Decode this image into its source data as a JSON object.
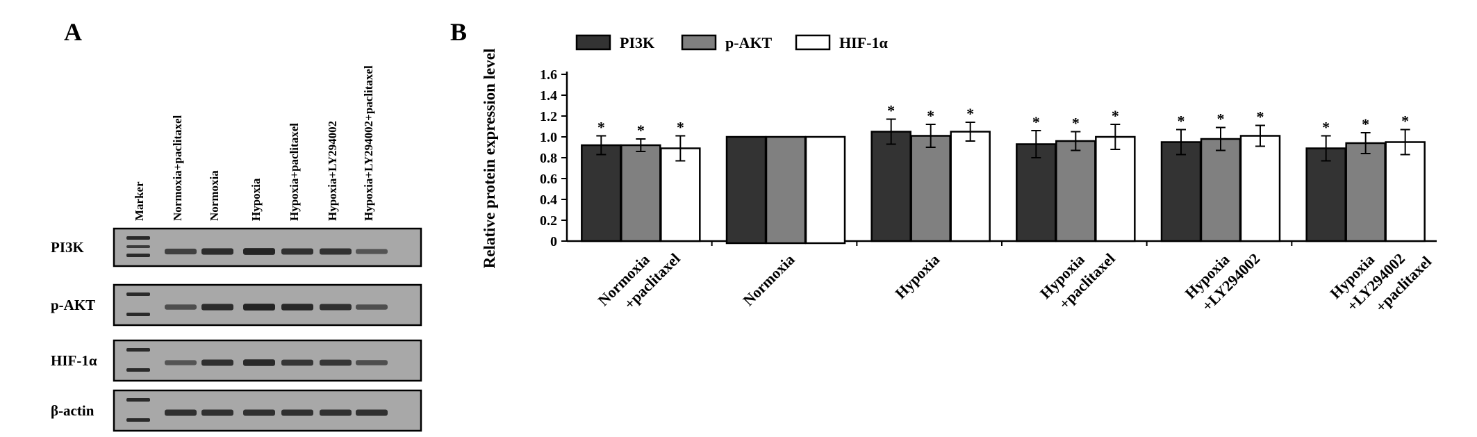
{
  "panel_a": {
    "label": "A",
    "lanes": [
      "Marker",
      "Normoxia+paclitaxel",
      "Normoxia",
      "Hypoxia",
      "Hypoxia+paclitaxel",
      "Hypoxia+LY294002",
      "Hypoxia+LY294002+paclitaxel"
    ],
    "rows": [
      {
        "label": "PI3K",
        "intensity": [
          1.0,
          0.72,
          0.88,
          0.95,
          0.85,
          0.84,
          0.55
        ]
      },
      {
        "label": "p-AKT",
        "intensity": [
          1.0,
          0.6,
          0.88,
          0.95,
          0.92,
          0.85,
          0.6
        ]
      },
      {
        "label": "HIF-1α",
        "intensity": [
          1.0,
          0.55,
          0.85,
          0.9,
          0.8,
          0.8,
          0.6
        ]
      },
      {
        "label": "β-actin",
        "intensity": [
          1.0,
          0.85,
          0.85,
          0.85,
          0.85,
          0.85,
          0.85
        ]
      }
    ]
  },
  "panel_b": {
    "label": "B"
  },
  "chart_data": {
    "type": "bar",
    "ylabel": "Relative protein expression level",
    "ylim": [
      0,
      1.6
    ],
    "yticks": [
      "0",
      "0.2",
      "0.4",
      "0.6",
      "0.8",
      "1.0",
      "1.2",
      "1.4",
      "1.6"
    ],
    "grid": false,
    "legend_position": "top",
    "categories": [
      [
        "Normoxia",
        "+paclitaxel"
      ],
      [
        "Normoxia"
      ],
      [
        "Hypoxia"
      ],
      [
        "Hypoxia",
        "+paclitaxel"
      ],
      [
        "Hypoxia",
        "+LY294002"
      ],
      [
        "Hypoxia",
        "+LY294002",
        "+paclitaxel"
      ]
    ],
    "series": [
      {
        "name": "PI3K",
        "color": "#333333",
        "values": [
          0.92,
          1.0,
          1.05,
          0.93,
          0.95,
          0.89
        ],
        "errors": [
          0.09,
          0,
          0.12,
          0.13,
          0.12,
          0.12
        ],
        "significant": [
          true,
          false,
          true,
          true,
          true,
          true
        ]
      },
      {
        "name": "p-AKT",
        "color": "#808080",
        "values": [
          0.92,
          1.0,
          1.01,
          0.96,
          0.98,
          0.94
        ],
        "errors": [
          0.06,
          0,
          0.11,
          0.09,
          0.11,
          0.1
        ],
        "significant": [
          true,
          false,
          true,
          true,
          true,
          true
        ]
      },
      {
        "name": "HIF-1α",
        "color": "#ffffff",
        "values": [
          0.89,
          1.0,
          1.05,
          1.0,
          1.01,
          0.95
        ],
        "errors": [
          0.12,
          0,
          0.09,
          0.12,
          0.1,
          0.12
        ],
        "significant": [
          true,
          false,
          true,
          true,
          true,
          true
        ]
      }
    ],
    "significance_marker": "*"
  }
}
